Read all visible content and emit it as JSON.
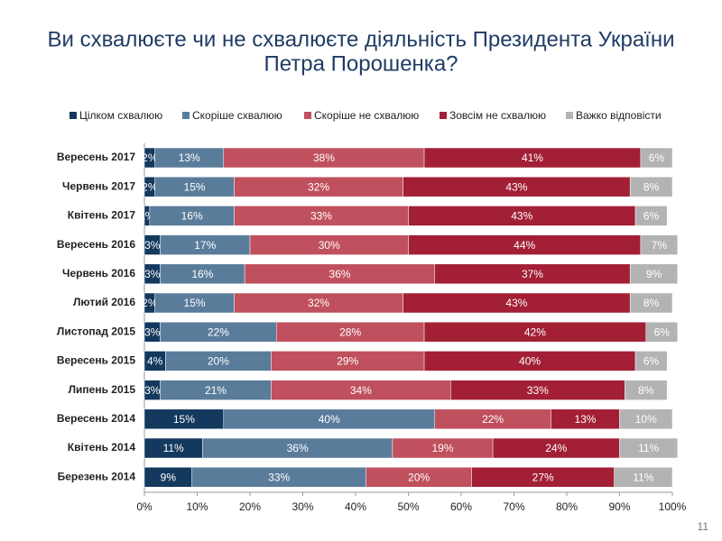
{
  "chart_data": {
    "type": "stacked-bar-horizontal",
    "title_lines": [
      "Ви схвалюєте чи не схвалюєте діяльність Президента України",
      "Петра Порошенка?"
    ],
    "categories": [
      "Вересень 2017",
      "Червень 2017",
      "Квітень 2017",
      "Вересень 2016",
      "Червень 2016",
      "Лютий 2016",
      "Листопад 2015",
      "Вересень 2015",
      "Липень 2015",
      "Вересень 2014",
      "Квітень 2014",
      "Березень 2014"
    ],
    "series": [
      {
        "name": "Цілком схвалюю",
        "color": "#13395e",
        "values": [
          2,
          2,
          1,
          3,
          3,
          2,
          3,
          4,
          3,
          15,
          11,
          9
        ],
        "value_labels": [
          "2%",
          "2%",
          "1%",
          "3%",
          "3%",
          "2%",
          "3%",
          "4%",
          "3%",
          "15%",
          "11%",
          "9%"
        ]
      },
      {
        "name": "Скоріше схвалюю",
        "color": "#5a7c9b",
        "values": [
          13,
          15,
          16,
          17,
          16,
          15,
          22,
          20,
          21,
          40,
          36,
          33
        ],
        "value_labels": [
          "13%",
          "15%",
          "16%",
          "17%",
          "16%",
          "15%",
          "22%",
          "20%",
          "21%",
          "40%",
          "36%",
          "33%"
        ]
      },
      {
        "name": "Скоріше не схвалюю",
        "color": "#c0505d",
        "values": [
          38,
          32,
          33,
          30,
          36,
          32,
          28,
          29,
          34,
          22,
          19,
          20
        ],
        "value_labels": [
          "38%",
          "32%",
          "33%",
          "30%",
          "36%",
          "32%",
          "28%",
          "29%",
          "34%",
          "22%",
          "19%",
          "20%"
        ]
      },
      {
        "name": "Зовсім не схвалюю",
        "color": "#a21f35",
        "values": [
          41,
          43,
          43,
          44,
          37,
          43,
          42,
          40,
          33,
          13,
          24,
          27
        ],
        "value_labels": [
          "41%",
          "43%",
          "43%",
          "44%",
          "37%",
          "43%",
          "42%",
          "40%",
          "33%",
          "13%",
          "24%",
          "27%"
        ]
      },
      {
        "name": "Важко відповісти",
        "color": "#b3b3b3",
        "values": [
          6,
          8,
          6,
          7,
          9,
          8,
          6,
          6,
          8,
          10,
          11,
          11
        ],
        "value_labels": [
          "6%",
          "8%",
          "6%",
          "7%",
          "9%",
          "8%",
          "6%",
          "6%",
          "8%",
          "10%",
          "11%",
          "11%"
        ]
      }
    ],
    "xlim": [
      0,
      100
    ],
    "xticks": [
      {
        "value": 0,
        "label": "0%"
      },
      {
        "value": 10,
        "label": "10%"
      },
      {
        "value": 20,
        "label": "20%"
      },
      {
        "value": 30,
        "label": "30%"
      },
      {
        "value": 40,
        "label": "40%"
      },
      {
        "value": 50,
        "label": "50%"
      },
      {
        "value": 60,
        "label": "60%"
      },
      {
        "value": 70,
        "label": "70%"
      },
      {
        "value": 80,
        "label": "80%"
      },
      {
        "value": 90,
        "label": "90%"
      },
      {
        "value": 100,
        "label": "100%"
      }
    ],
    "legend": "top"
  },
  "page_number": "11"
}
